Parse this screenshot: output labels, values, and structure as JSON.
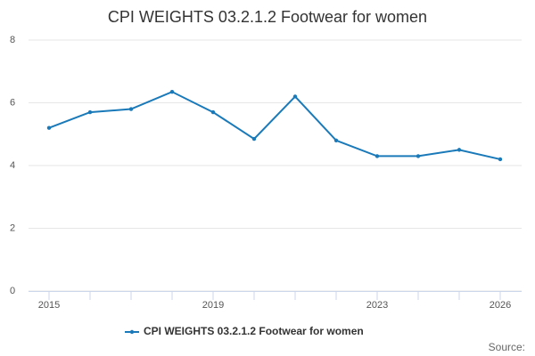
{
  "chart_data": {
    "type": "line",
    "title": "CPI WEIGHTS 03.2.1.2 Footwear for women",
    "x": [
      2015,
      2016,
      2017,
      2018,
      2019,
      2020,
      2021,
      2022,
      2023,
      2024,
      2025,
      2026
    ],
    "series": [
      {
        "name": "CPI WEIGHTS 03.2.1.2 Footwear for women",
        "color": "#1a7ab9",
        "values": [
          5.2,
          5.7,
          5.8,
          6.35,
          5.7,
          4.85,
          6.2,
          4.8,
          4.3,
          4.3,
          4.5,
          4.2
        ]
      }
    ],
    "xlim": [
      2015,
      2026
    ],
    "xticks": [
      2015,
      2019,
      2023,
      2026
    ],
    "ylim": [
      0,
      8
    ],
    "yticks": [
      0,
      2,
      4,
      6,
      8
    ],
    "grid": true,
    "source": "Source:"
  }
}
